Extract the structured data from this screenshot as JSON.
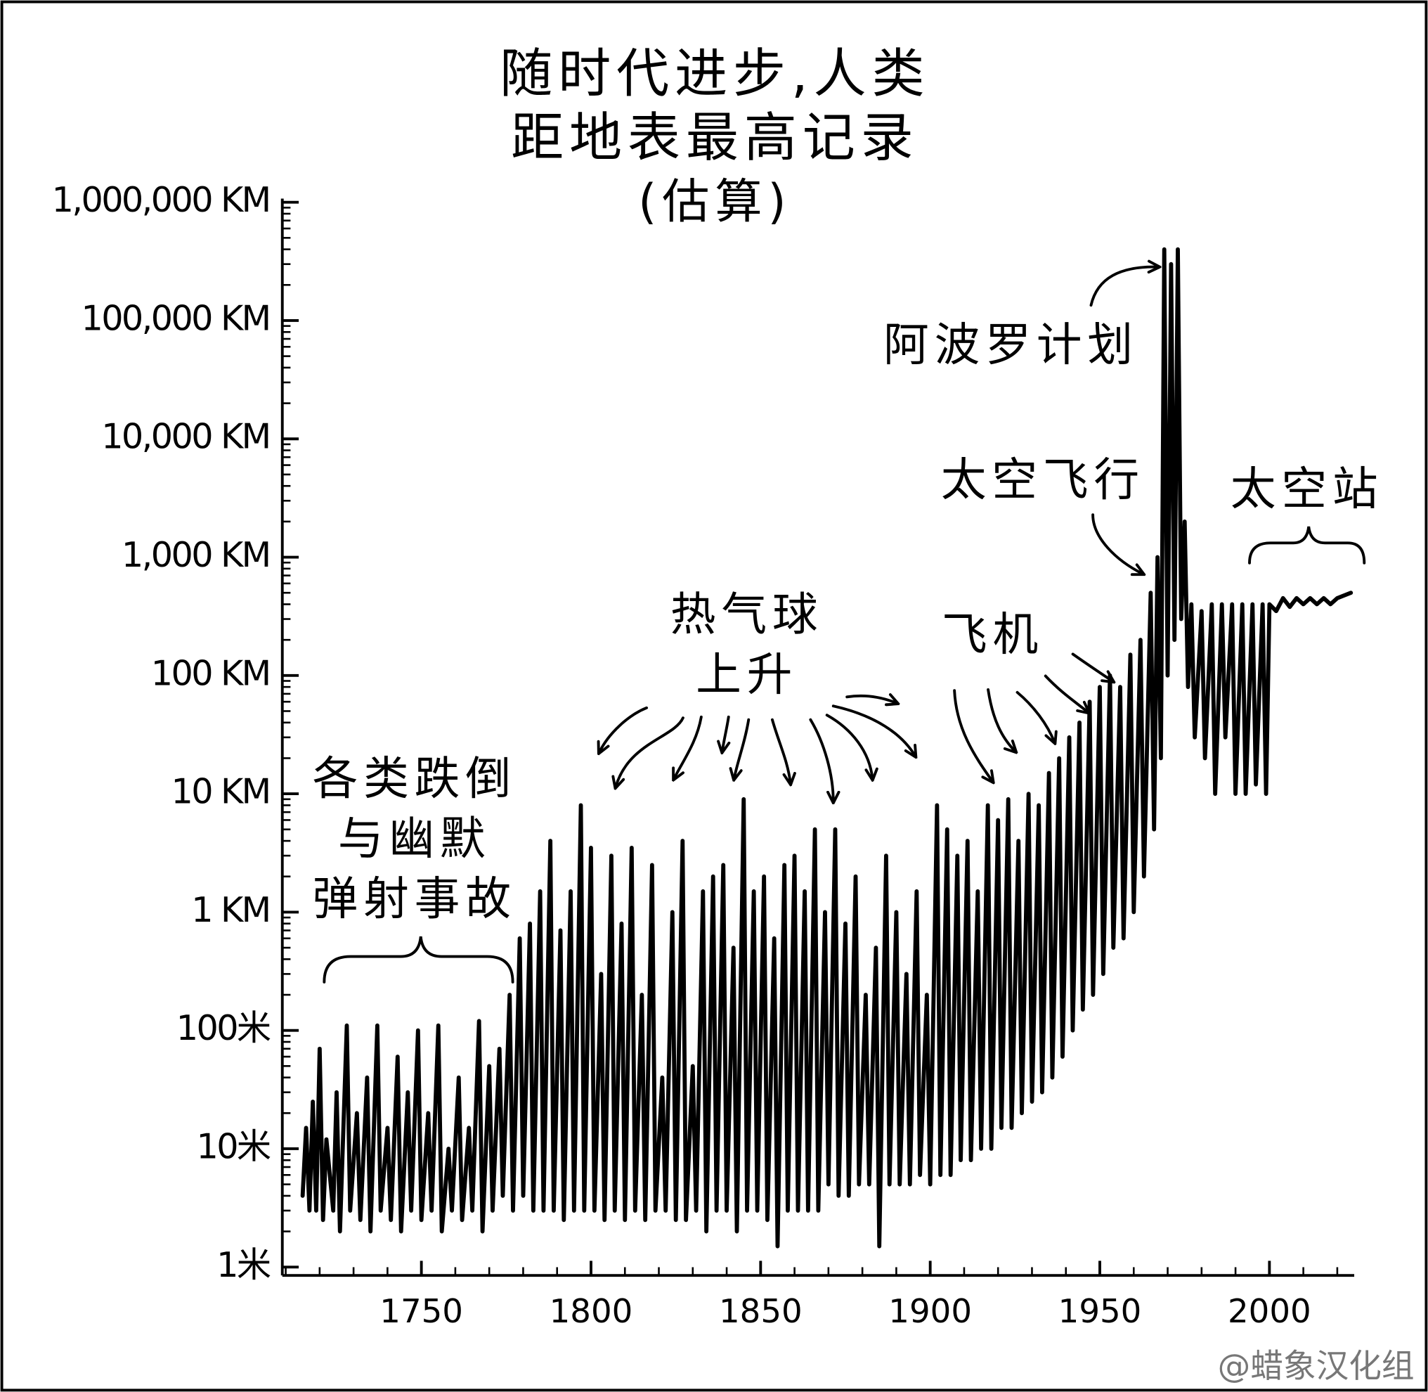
{
  "chart_data": {
    "type": "line",
    "title": [
      "随时代进步,人类",
      "距地表最高记录"
    ],
    "subtitle": "(估算)",
    "log_scale": true,
    "minor_ticks": true,
    "color": "#000000",
    "xlim": [
      1709,
      2025
    ],
    "xticks": [
      1750,
      1800,
      1850,
      1900,
      1950,
      2000
    ],
    "ylim": [
      0.85,
      1000000000
    ],
    "yticks": [
      {
        "value": 1,
        "label": "1米"
      },
      {
        "value": 10,
        "label": "10米"
      },
      {
        "value": 100,
        "label": "100米"
      },
      {
        "value": 1000,
        "label": "1 KM"
      },
      {
        "value": 10000,
        "label": "10 KM"
      },
      {
        "value": 100000,
        "label": "100 KM"
      },
      {
        "value": 1000000,
        "label": "1,000 KM"
      },
      {
        "value": 10000000,
        "label": "10,000 KM"
      },
      {
        "value": 100000000,
        "label": "100,000 KM"
      },
      {
        "value": 1000000000,
        "label": "1,000,000 KM"
      }
    ],
    "x": [
      1715,
      1716,
      1717,
      1718,
      1719,
      1720,
      1721,
      1722,
      1724,
      1725,
      1726,
      1728,
      1729,
      1731,
      1732,
      1734,
      1735,
      1737,
      1738,
      1740,
      1741,
      1743,
      1744,
      1746,
      1747,
      1749,
      1750,
      1752,
      1753,
      1755,
      1756,
      1758,
      1759,
      1761,
      1762,
      1764,
      1765,
      1767,
      1768,
      1770,
      1771,
      1773,
      1774,
      1776,
      1777,
      1779,
      1780,
      1782,
      1783,
      1785,
      1786,
      1788,
      1789,
      1791,
      1792,
      1794,
      1795,
      1797,
      1798,
      1800,
      1801,
      1803,
      1804,
      1806,
      1807,
      1809,
      1810,
      1812,
      1813,
      1815,
      1816,
      1818,
      1819,
      1821,
      1822,
      1824,
      1825,
      1827,
      1828,
      1830,
      1831,
      1833,
      1834,
      1836,
      1837,
      1839,
      1840,
      1842,
      1843,
      1845,
      1846,
      1848,
      1849,
      1851,
      1852,
      1854,
      1855,
      1857,
      1858,
      1860,
      1861,
      1863,
      1864,
      1866,
      1867,
      1869,
      1870,
      1872,
      1873,
      1875,
      1876,
      1878,
      1879,
      1881,
      1882,
      1884,
      1885,
      1887,
      1888,
      1890,
      1891,
      1893,
      1894,
      1896,
      1897,
      1899,
      1900,
      1902,
      1903,
      1905,
      1906,
      1908,
      1909,
      1911,
      1912,
      1914,
      1915,
      1917,
      1918,
      1920,
      1921,
      1923,
      1924,
      1926,
      1927,
      1929,
      1930,
      1932,
      1933,
      1935,
      1936,
      1938,
      1939,
      1941,
      1942,
      1944,
      1945,
      1947,
      1948,
      1950,
      1951,
      1953,
      1954,
      1956,
      1957,
      1959,
      1960,
      1962,
      1963,
      1965,
      1966,
      1967,
      1968,
      1969,
      1970,
      1971,
      1972,
      1973,
      1974,
      1975,
      1976,
      1977,
      1978,
      1980,
      1981,
      1983,
      1984,
      1986,
      1987,
      1989,
      1990,
      1992,
      1993,
      1995,
      1996,
      1998,
      1999,
      2000,
      2002,
      2004,
      2006,
      2008,
      2010,
      2012,
      2014,
      2016,
      2018,
      2020,
      2024
    ],
    "values": [
      4,
      15,
      3,
      25,
      3,
      70,
      2.5,
      12,
      3,
      30,
      2,
      110,
      3,
      20,
      2.5,
      40,
      2,
      110,
      3,
      15,
      2.5,
      60,
      2,
      30,
      3,
      100,
      2.5,
      20,
      3,
      110,
      2,
      10,
      3,
      40,
      2.5,
      15,
      3,
      120,
      2,
      50,
      3,
      70,
      4,
      200,
      3,
      600,
      4,
      800,
      3,
      1500,
      3,
      4000,
      3,
      700,
      2.5,
      1500,
      3,
      8000,
      3,
      3500,
      3,
      300,
      2.5,
      3000,
      3,
      800,
      2.5,
      3500,
      3,
      200,
      2.5,
      2500,
      3,
      40,
      3,
      1000,
      2.5,
      4000,
      2.5,
      50,
      3,
      1500,
      2,
      2000,
      3,
      2500,
      3,
      500,
      2,
      9000,
      3,
      1500,
      3,
      2000,
      2.5,
      600,
      1.5,
      2500,
      3,
      3000,
      3,
      1500,
      3,
      5000,
      3,
      1000,
      5,
      5000,
      4,
      800,
      4,
      2000,
      5,
      200,
      5,
      500,
      1.5,
      3000,
      5,
      1000,
      5,
      300,
      5,
      1500,
      6,
      200,
      5,
      8000,
      6,
      5000,
      6,
      3000,
      8,
      4000,
      8,
      1500,
      10,
      8000,
      10,
      6000,
      15,
      9000,
      15,
      4000,
      20,
      10000,
      25,
      8000,
      30,
      15000,
      40,
      20000,
      60,
      30000,
      100,
      40000,
      150,
      60000,
      200,
      80000,
      300,
      100000,
      500,
      80000,
      600,
      150000,
      1000,
      200000,
      2000,
      500000,
      5000,
      1000000,
      20000,
      400000000,
      100000,
      300000000,
      200000,
      400000000,
      300000,
      2000000,
      80000,
      400000,
      30000,
      350000,
      20000,
      400000,
      10000,
      400000,
      30000,
      400000,
      10000,
      400000,
      10000,
      400000,
      12000,
      400000,
      10000,
      400000,
      350000,
      450000,
      380000,
      450000,
      400000,
      450000,
      400000,
      450000,
      400000,
      450000,
      500000
    ],
    "annotations": [
      [
        "各类跌倒",
        "与幽默",
        "弹射事故"
      ],
      [
        "热气球",
        "上升"
      ],
      [
        "飞机"
      ],
      [
        "太空飞行"
      ],
      [
        "阿波罗计划"
      ],
      [
        "太空站"
      ]
    ],
    "credit": "@蜡象汉化组"
  }
}
